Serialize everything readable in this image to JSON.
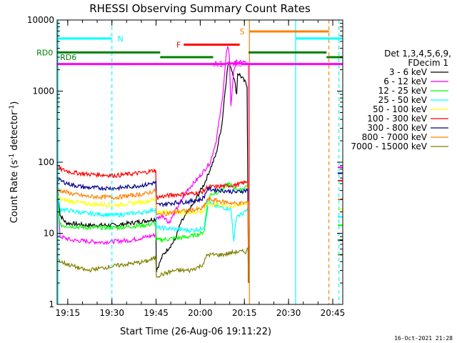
{
  "chart_data": {
    "type": "line",
    "title": "RHESSI Observing Summary Count Rates",
    "xlabel": "Start Time (26-Aug-06 19:11:22)",
    "ylabel": "Count Rate (s-1 detector-1)",
    "ylabel_parts": {
      "main": "Count Rate (s",
      "sup1": "-1",
      "mid": " detector",
      "sup2": "-1",
      "end": ")"
    },
    "y_scale": "log",
    "ylim": [
      1,
      10000
    ],
    "xlim_minutes": [
      0,
      97
    ],
    "y_ticks": [
      {
        "value": 1,
        "label": "1"
      },
      {
        "value": 10,
        "label": "10"
      },
      {
        "value": 100,
        "label": "100"
      },
      {
        "value": 1000,
        "label": "1000"
      },
      {
        "value": 10000,
        "label": "10000"
      }
    ],
    "x_ticks": [
      {
        "value": 3.6,
        "label": "19:15"
      },
      {
        "value": 18.6,
        "label": "19:30"
      },
      {
        "value": 33.6,
        "label": "19:45"
      },
      {
        "value": 48.6,
        "label": "20:00"
      },
      {
        "value": 63.6,
        "label": "20:15"
      },
      {
        "value": 78.6,
        "label": "20:30"
      },
      {
        "value": 93.6,
        "label": "20:45"
      }
    ],
    "legend_header": [
      "Det 1,3,4,5,6,9,",
      "FDecim 1"
    ],
    "series": [
      {
        "name": "3 - 6 keV",
        "color": "#000000",
        "points": [
          [
            0,
            60
          ],
          [
            1,
            18
          ],
          [
            3,
            14
          ],
          [
            10,
            13
          ],
          [
            20,
            13
          ],
          [
            30,
            15
          ],
          [
            33.5,
            16
          ],
          [
            33.7,
            3
          ],
          [
            36,
            5
          ],
          [
            40,
            8
          ],
          [
            42,
            14
          ],
          [
            46,
            25
          ],
          [
            50,
            50
          ],
          [
            54,
            130
          ],
          [
            56,
            350
          ],
          [
            57,
            1000
          ],
          [
            58,
            2300
          ],
          [
            58.5,
            2500
          ],
          [
            59,
            2200
          ],
          [
            60,
            1600
          ],
          [
            61,
            900
          ],
          [
            61.3,
            1800
          ],
          [
            62,
            1700
          ],
          [
            63,
            1500
          ],
          [
            64,
            1300
          ],
          [
            64.5,
            1200
          ],
          [
            65,
            2
          ]
        ]
      },
      {
        "name": "6 - 12 keV",
        "color": "#ff00ff",
        "points": [
          [
            0,
            45
          ],
          [
            1,
            9
          ],
          [
            5,
            8
          ],
          [
            15,
            7.5
          ],
          [
            25,
            8
          ],
          [
            33.5,
            9.5
          ],
          [
            33.7,
            16
          ],
          [
            36,
            18
          ],
          [
            38,
            14
          ],
          [
            40,
            20
          ],
          [
            44,
            40
          ],
          [
            48,
            60
          ],
          [
            52,
            100
          ],
          [
            54,
            200
          ],
          [
            56,
            700
          ],
          [
            57.5,
            3500
          ],
          [
            58,
            4000
          ],
          [
            58.5,
            3200
          ],
          [
            59,
            600
          ],
          [
            60,
            2000
          ],
          [
            61,
            2600
          ],
          [
            62,
            2500
          ],
          [
            63,
            2600
          ],
          [
            64,
            2500
          ],
          [
            65,
            2300
          ],
          [
            65.3,
            2
          ]
        ]
      },
      {
        "name": "12 - 25 keV",
        "color": "#00ff00",
        "points": [
          [
            0,
            35
          ],
          [
            1,
            13
          ],
          [
            10,
            12
          ],
          [
            20,
            12
          ],
          [
            30,
            13
          ],
          [
            33.5,
            14
          ],
          [
            33.7,
            8
          ],
          [
            40,
            8.5
          ],
          [
            45,
            9
          ],
          [
            49,
            10
          ],
          [
            50,
            11
          ],
          [
            51,
            22
          ],
          [
            52,
            35
          ],
          [
            56,
            40
          ],
          [
            58,
            50
          ],
          [
            60,
            45
          ],
          [
            62,
            40
          ],
          [
            64,
            45
          ],
          [
            64.8,
            50
          ],
          [
            65,
            2
          ]
        ]
      },
      {
        "name": "25 - 50 keV",
        "color": "#00ffff",
        "points": [
          [
            0,
            40
          ],
          [
            1,
            22
          ],
          [
            10,
            19
          ],
          [
            20,
            18
          ],
          [
            30,
            20
          ],
          [
            33.5,
            22
          ],
          [
            33.7,
            12
          ],
          [
            40,
            11.5
          ],
          [
            45,
            11
          ],
          [
            49,
            11.5
          ],
          [
            50,
            13
          ],
          [
            51,
            28
          ],
          [
            53,
            25
          ],
          [
            56,
            23
          ],
          [
            59,
            22
          ],
          [
            60,
            8
          ],
          [
            61,
            18
          ],
          [
            62,
            18
          ],
          [
            64,
            20
          ],
          [
            64.8,
            22
          ],
          [
            65,
            2
          ]
        ]
      },
      {
        "name": "50 - 100 keV",
        "color": "#ffff00",
        "points": [
          [
            0,
            35
          ],
          [
            1,
            30
          ],
          [
            10,
            26
          ],
          [
            20,
            25
          ],
          [
            30,
            28
          ],
          [
            33.5,
            30
          ],
          [
            33.7,
            20
          ],
          [
            40,
            20
          ],
          [
            45,
            19.5
          ],
          [
            49,
            20
          ],
          [
            50,
            21
          ],
          [
            51,
            26
          ],
          [
            56,
            25
          ],
          [
            60,
            24
          ],
          [
            62,
            25
          ],
          [
            64.8,
            27
          ],
          [
            65,
            2
          ]
        ]
      },
      {
        "name": "100 - 300 keV",
        "color": "#ff0000",
        "points": [
          [
            0,
            90
          ],
          [
            1,
            80
          ],
          [
            5,
            72
          ],
          [
            10,
            68
          ],
          [
            20,
            65
          ],
          [
            30,
            72
          ],
          [
            33.5,
            78
          ],
          [
            33.7,
            32
          ],
          [
            40,
            35
          ],
          [
            45,
            36
          ],
          [
            49,
            38
          ],
          [
            50,
            40
          ],
          [
            51,
            45
          ],
          [
            54,
            45
          ],
          [
            58,
            47
          ],
          [
            61,
            48
          ],
          [
            64,
            52
          ],
          [
            64.8,
            55
          ],
          [
            65,
            2
          ]
        ]
      },
      {
        "name": "300 - 800 keV",
        "color": "#00008b",
        "points": [
          [
            0,
            60
          ],
          [
            1,
            55
          ],
          [
            5,
            48
          ],
          [
            10,
            44
          ],
          [
            20,
            43
          ],
          [
            30,
            48
          ],
          [
            33.5,
            52
          ],
          [
            33.7,
            25
          ],
          [
            40,
            27
          ],
          [
            45,
            28
          ],
          [
            49,
            30
          ],
          [
            50,
            33
          ],
          [
            51,
            42
          ],
          [
            56,
            40
          ],
          [
            61,
            38
          ],
          [
            64,
            40
          ],
          [
            64.8,
            42
          ],
          [
            65,
            2
          ]
        ]
      },
      {
        "name": "800 - 7000 keV",
        "color": "#ff8000",
        "points": [
          [
            0,
            45
          ],
          [
            1,
            40
          ],
          [
            5,
            36
          ],
          [
            10,
            33
          ],
          [
            20,
            32
          ],
          [
            30,
            36
          ],
          [
            33.5,
            40
          ],
          [
            33.7,
            18
          ],
          [
            40,
            20
          ],
          [
            45,
            21
          ],
          [
            49,
            22
          ],
          [
            50,
            24
          ],
          [
            51,
            30
          ],
          [
            56,
            28
          ],
          [
            61,
            26
          ],
          [
            64,
            27
          ],
          [
            64.8,
            28
          ],
          [
            65,
            2
          ]
        ]
      },
      {
        "name": "7000 - 15000 keV",
        "color": "#808000",
        "points": [
          [
            0,
            5
          ],
          [
            1,
            4
          ],
          [
            5,
            3.5
          ],
          [
            10,
            3
          ],
          [
            20,
            3.5
          ],
          [
            30,
            4
          ],
          [
            33.5,
            4.5
          ],
          [
            33.7,
            2.5
          ],
          [
            40,
            3
          ],
          [
            45,
            3
          ],
          [
            49,
            3.5
          ],
          [
            50,
            4
          ],
          [
            51,
            5
          ],
          [
            56,
            5
          ],
          [
            61,
            5.5
          ],
          [
            64,
            5.5
          ],
          [
            64.8,
            6
          ],
          [
            65,
            2
          ]
        ]
      }
    ],
    "late_segment": {
      "start": 95.3,
      "end": 97,
      "values": [
        {
          "series": "3 - 6 keV",
          "value": 8
        },
        {
          "series": "6 - 12 keV",
          "value": 85
        },
        {
          "series": "12 - 25 keV",
          "value": 13
        },
        {
          "series": "25 - 50 keV",
          "value": 17
        },
        {
          "series": "50 - 100 keV",
          "value": 22
        },
        {
          "series": "100 - 300 keV",
          "value": 55
        },
        {
          "series": "300 - 800 keV",
          "value": 70
        },
        {
          "series": "800 - 7000 keV",
          "value": 30
        },
        {
          "series": "7000 - 15000 keV",
          "value": 5
        }
      ]
    },
    "vertical_markers": [
      {
        "x": 0.3,
        "color": "#00ffff",
        "style": "solid"
      },
      {
        "x": 18.6,
        "color": "#00ffff",
        "style": "dashed"
      },
      {
        "x": 65.3,
        "color": "#ff8000",
        "style": "solid"
      },
      {
        "x": 81,
        "color": "#00ffff",
        "style": "solid"
      },
      {
        "x": 92.3,
        "color": "#ff8000",
        "style": "dashed"
      },
      {
        "x": 95.7,
        "color": "#00ffff",
        "style": "dashed"
      }
    ],
    "flag_bars": [
      {
        "label": "N",
        "color": "#00ffff",
        "level": 5500,
        "segments": [
          [
            0.3,
            18.6
          ],
          [
            81,
            97
          ]
        ],
        "label_x": 20.5
      },
      {
        "label": "S",
        "color": "#ff8000",
        "level": 6900,
        "segments": [
          [
            65.3,
            92.3
          ]
        ],
        "label_x": 62
      },
      {
        "label": "F",
        "color": "#ff0000",
        "level": 4500,
        "segments": [
          [
            43,
            62
          ]
        ],
        "label_x": 40.5
      },
      {
        "label": "RD0",
        "color": "#008000",
        "level": 3500,
        "segments": [
          [
            0,
            35
          ],
          [
            65,
            91.5
          ]
        ],
        "label_x": -7
      },
      {
        "label": "RD6",
        "color": "#008000",
        "level": 3000,
        "segments": [
          [
            35,
            53
          ],
          [
            91.5,
            97
          ]
        ],
        "label_x": 1
      },
      {
        "label": "A1",
        "color": "#ff00ff",
        "level": 2400,
        "segments": [
          [
            0,
            57.5
          ],
          [
            62.5,
            97
          ]
        ],
        "label_x": 53
      },
      {
        "label": "A0",
        "color": "#ff00ff",
        "level": 2450,
        "segments": [
          [
            57.5,
            62.5
          ]
        ],
        "label_x": 59.5
      }
    ],
    "annotation_extra": {
      "label": "",
      "color": "#008000"
    },
    "timestamp": "16-Oct-2021 21:28"
  }
}
